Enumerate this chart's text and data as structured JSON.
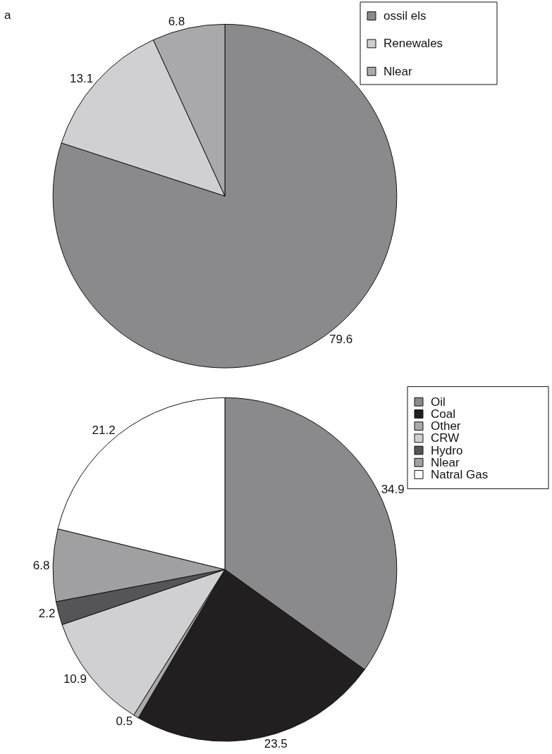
{
  "chart_data": [
    {
      "type": "pie",
      "annotations": [
        "a"
      ],
      "legend": "top right",
      "data_labels": true,
      "categories": [
        "ossil els",
        "Renewales",
        "Nlear"
      ],
      "values": [
        79.6,
        13.1,
        6.8
      ],
      "colors": [
        "#8a8a8d",
        "#d0d0d2",
        "#a9a9ab"
      ]
    },
    {
      "type": "pie",
      "legend": "top right",
      "data_labels": true,
      "categories": [
        "Oil",
        "Coal",
        "Other",
        "CRW",
        "Hydro",
        "Nlear",
        "Natral Gas"
      ],
      "values": [
        34.9,
        23.5,
        0.5,
        10.9,
        2.2,
        6.8,
        21.2
      ],
      "colors": [
        "#8a8a8d",
        "#231f20",
        "#a9a9ab",
        "#d0d0d2",
        "#555557",
        "#a0a0a2",
        "#ffffff"
      ]
    }
  ]
}
